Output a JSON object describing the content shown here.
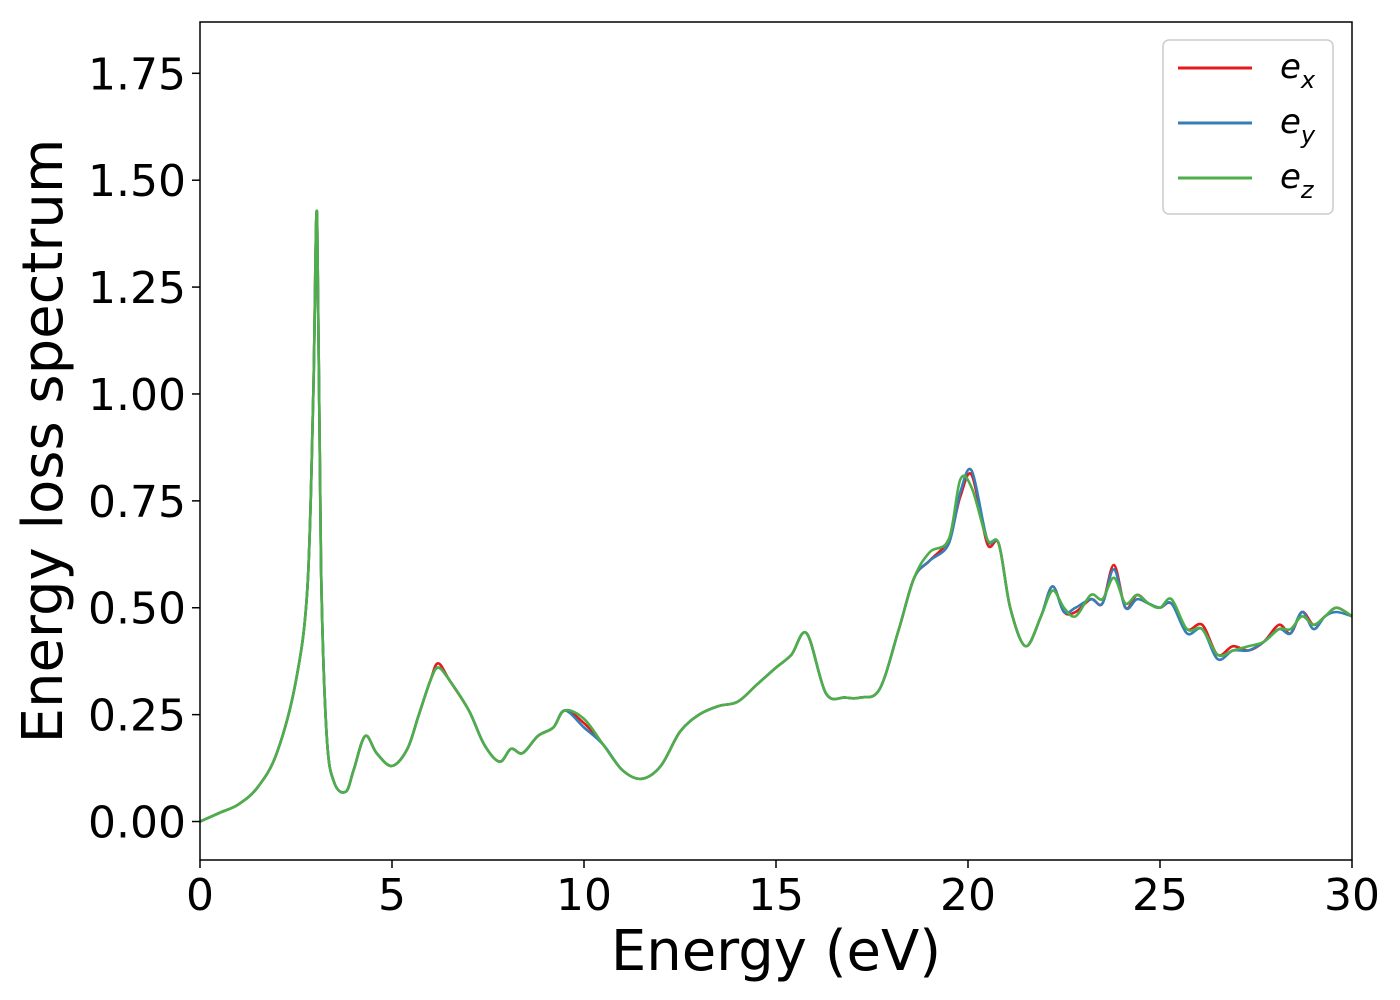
{
  "chart_data": {
    "type": "line",
    "title": "",
    "xlabel": "Energy (eV)",
    "ylabel": "Energy loss spectrum",
    "xlim": [
      0,
      30
    ],
    "ylim": [
      -0.09,
      1.87
    ],
    "xticks": [
      "0",
      "5",
      "10",
      "15",
      "20",
      "25",
      "30"
    ],
    "xtick_values": [
      0,
      5,
      10,
      15,
      20,
      25,
      30
    ],
    "yticks": [
      "0.00",
      "0.25",
      "0.50",
      "0.75",
      "1.00",
      "1.25",
      "1.50",
      "1.75"
    ],
    "ytick_values": [
      0,
      0.25,
      0.5,
      0.75,
      1.0,
      1.25,
      1.5,
      1.75
    ],
    "grid": false,
    "legend": {
      "position": "top-right",
      "entries": [
        {
          "base": "e",
          "sub": "x",
          "color": "#e41a1c"
        },
        {
          "base": "e",
          "sub": "y",
          "color": "#377eb8"
        },
        {
          "base": "e",
          "sub": "z",
          "color": "#4daf4a"
        }
      ]
    },
    "x": [
      0,
      0.5,
      1.0,
      1.5,
      2.0,
      2.5,
      2.8,
      2.95,
      3.05,
      3.15,
      3.3,
      3.5,
      3.8,
      4.0,
      4.3,
      4.6,
      5.0,
      5.4,
      5.7,
      6.0,
      6.2,
      6.5,
      7.0,
      7.4,
      7.8,
      8.1,
      8.4,
      8.8,
      9.2,
      9.5,
      10.0,
      10.5,
      11.0,
      11.5,
      12.0,
      12.5,
      13.0,
      13.5,
      14.0,
      14.5,
      15.0,
      15.4,
      15.8,
      16.3,
      16.8,
      17.2,
      17.7,
      18.2,
      18.6,
      19.0,
      19.5,
      19.8,
      20.1,
      20.5,
      20.8,
      21.1,
      21.5,
      21.9,
      22.2,
      22.5,
      22.8,
      23.2,
      23.5,
      23.8,
      24.1,
      24.4,
      24.7,
      25.0,
      25.3,
      25.7,
      26.1,
      26.5,
      26.9,
      27.3,
      27.7,
      28.1,
      28.4,
      28.7,
      29.0,
      29.3,
      29.6,
      30.0
    ],
    "series": [
      {
        "name": "e_x",
        "color": "#e41a1c",
        "values": [
          0.0,
          0.02,
          0.04,
          0.08,
          0.16,
          0.33,
          0.55,
          1.0,
          1.42,
          0.6,
          0.2,
          0.09,
          0.07,
          0.12,
          0.2,
          0.16,
          0.13,
          0.17,
          0.25,
          0.33,
          0.37,
          0.33,
          0.26,
          0.18,
          0.14,
          0.17,
          0.16,
          0.2,
          0.22,
          0.26,
          0.23,
          0.18,
          0.12,
          0.1,
          0.13,
          0.21,
          0.25,
          0.27,
          0.28,
          0.32,
          0.36,
          0.39,
          0.44,
          0.3,
          0.29,
          0.29,
          0.31,
          0.45,
          0.57,
          0.61,
          0.66,
          0.76,
          0.81,
          0.65,
          0.65,
          0.5,
          0.41,
          0.48,
          0.55,
          0.49,
          0.49,
          0.52,
          0.51,
          0.6,
          0.5,
          0.53,
          0.51,
          0.5,
          0.51,
          0.45,
          0.46,
          0.39,
          0.41,
          0.4,
          0.42,
          0.46,
          0.44,
          0.49,
          0.46,
          0.48,
          0.5,
          0.48
        ]
      },
      {
        "name": "e_y",
        "color": "#377eb8",
        "values": [
          0.0,
          0.02,
          0.04,
          0.08,
          0.16,
          0.33,
          0.55,
          1.0,
          1.42,
          0.6,
          0.2,
          0.09,
          0.07,
          0.12,
          0.2,
          0.16,
          0.13,
          0.17,
          0.25,
          0.33,
          0.36,
          0.33,
          0.26,
          0.18,
          0.14,
          0.17,
          0.16,
          0.2,
          0.22,
          0.26,
          0.22,
          0.18,
          0.12,
          0.1,
          0.13,
          0.21,
          0.25,
          0.27,
          0.28,
          0.32,
          0.36,
          0.39,
          0.44,
          0.3,
          0.29,
          0.29,
          0.31,
          0.45,
          0.57,
          0.61,
          0.65,
          0.77,
          0.82,
          0.66,
          0.65,
          0.5,
          0.41,
          0.48,
          0.55,
          0.49,
          0.5,
          0.52,
          0.51,
          0.59,
          0.5,
          0.52,
          0.51,
          0.5,
          0.51,
          0.44,
          0.45,
          0.38,
          0.4,
          0.4,
          0.42,
          0.45,
          0.44,
          0.49,
          0.45,
          0.48,
          0.49,
          0.48
        ]
      },
      {
        "name": "e_z",
        "color": "#4daf4a",
        "values": [
          0.0,
          0.02,
          0.04,
          0.08,
          0.16,
          0.33,
          0.55,
          1.0,
          1.42,
          0.6,
          0.2,
          0.09,
          0.07,
          0.12,
          0.2,
          0.16,
          0.13,
          0.17,
          0.25,
          0.33,
          0.36,
          0.33,
          0.26,
          0.18,
          0.14,
          0.17,
          0.16,
          0.2,
          0.22,
          0.26,
          0.24,
          0.18,
          0.12,
          0.1,
          0.13,
          0.21,
          0.25,
          0.27,
          0.28,
          0.32,
          0.36,
          0.39,
          0.44,
          0.3,
          0.29,
          0.29,
          0.31,
          0.45,
          0.57,
          0.63,
          0.66,
          0.8,
          0.78,
          0.66,
          0.65,
          0.5,
          0.41,
          0.48,
          0.54,
          0.5,
          0.48,
          0.53,
          0.52,
          0.57,
          0.51,
          0.53,
          0.51,
          0.5,
          0.52,
          0.45,
          0.45,
          0.39,
          0.4,
          0.41,
          0.42,
          0.45,
          0.45,
          0.48,
          0.46,
          0.48,
          0.5,
          0.48
        ]
      }
    ]
  }
}
